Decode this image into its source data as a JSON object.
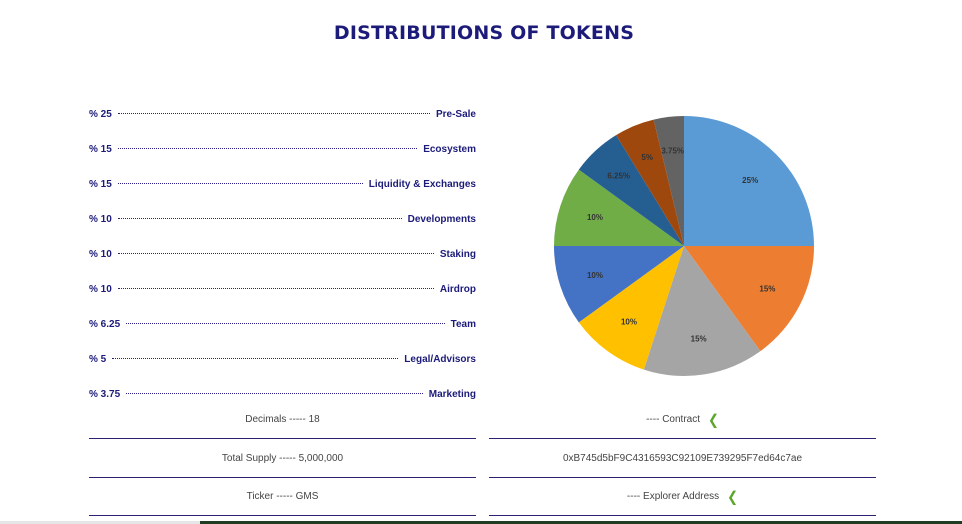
{
  "title": "DISTRIBUTIONS OF TOKENS",
  "distribution": [
    {
      "pct": "% 25",
      "name": "Pre-Sale"
    },
    {
      "pct": "% 15",
      "name": "Ecosystem"
    },
    {
      "pct": "% 15",
      "name": "Liquidity & Exchanges"
    },
    {
      "pct": "% 10",
      "name": "Developments"
    },
    {
      "pct": "% 10",
      "name": "Staking"
    },
    {
      "pct": "% 10",
      "name": "Airdrop"
    },
    {
      "pct": "% 6.25",
      "name": "Team"
    },
    {
      "pct": "% 5",
      "name": "Legal/Advisors"
    },
    {
      "pct": "% 3.75",
      "name": "Marketing"
    }
  ],
  "chart_data": {
    "type": "pie",
    "values": [
      25,
      15,
      15,
      10,
      10,
      10,
      6.25,
      5,
      3.75
    ],
    "labels": [
      "25%",
      "15%",
      "15%",
      "10%",
      "10%",
      "10%",
      "6.25%",
      "5%",
      "3.75%"
    ],
    "colors": [
      "#5b9bd5",
      "#ed7d31",
      "#a5a5a5",
      "#ffc000",
      "#4472c4",
      "#70ad47",
      "#255e91",
      "#9e480e",
      "#636363"
    ],
    "start_angle_deg": 0,
    "direction": "clockwise-from-top"
  },
  "info": {
    "decimals": "Decimals ----- 18",
    "total_supply": "Total Supply ----- 5,000,000",
    "ticker": "Ticker ----- GMS",
    "contract": "---- Contract",
    "contract_address": "0xB745d5bF9C4316593C92109E739295F7ed64c7ae",
    "explorer": "---- Explorer Address",
    "chevron_icon": "chevron-left-icon"
  }
}
